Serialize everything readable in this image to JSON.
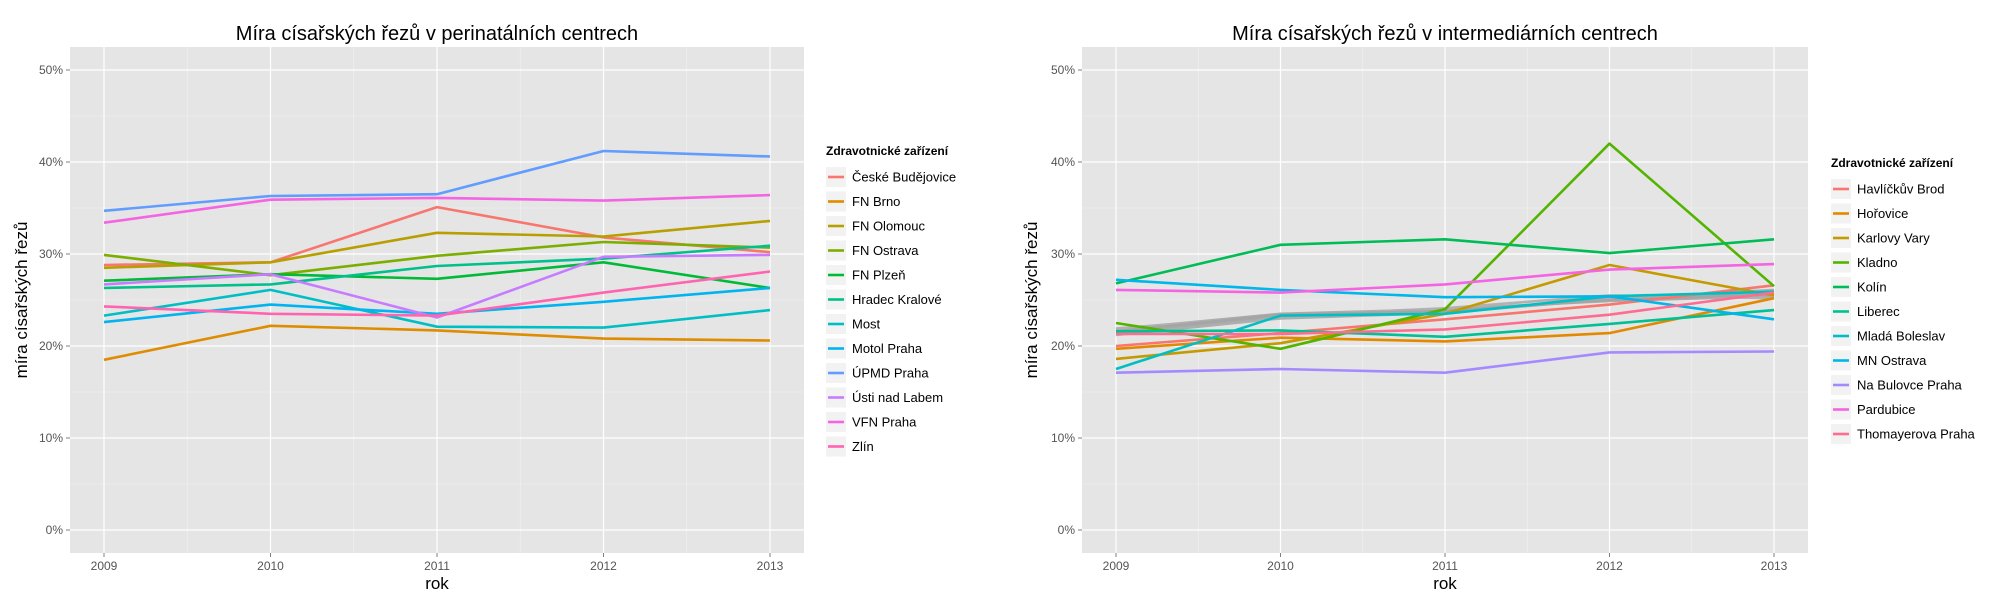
{
  "chart_data": [
    {
      "type": "line",
      "title": "Míra císařských řezů v perinatálních centrech",
      "xlabel": "rok",
      "ylabel": "míra císařských řezů",
      "x": [
        2009,
        2010,
        2011,
        2012,
        2013
      ],
      "x_ticks": [
        "2009",
        "2010",
        "2011",
        "2012",
        "2013"
      ],
      "ylim": [
        -0.025,
        0.525
      ],
      "y_ticks": [
        {
          "value": 0.0,
          "label": "0%"
        },
        {
          "value": 0.1,
          "label": "10%"
        },
        {
          "value": 0.2,
          "label": "20%"
        },
        {
          "value": 0.3,
          "label": "30%"
        },
        {
          "value": 0.4,
          "label": "40%"
        },
        {
          "value": 0.5,
          "label": "50%"
        }
      ],
      "grid": true,
      "legend_title": "Zdravotnické zařízení",
      "legend_position": "right",
      "series": [
        {
          "name": "České Budějovice",
          "color": "#F8766D",
          "values": [
            0.288,
            0.291,
            0.351,
            0.318,
            0.302
          ]
        },
        {
          "name": "FN Brno",
          "color": "#DE8C00",
          "values": [
            0.185,
            0.222,
            0.217,
            0.208,
            0.206
          ]
        },
        {
          "name": "FN Olomouc",
          "color": "#B79F00",
          "values": [
            0.285,
            0.291,
            0.323,
            0.319,
            0.336
          ]
        },
        {
          "name": "FN Ostrava",
          "color": "#7CAE00",
          "values": [
            0.299,
            0.277,
            0.298,
            0.313,
            0.307
          ]
        },
        {
          "name": "FN Plzeň",
          "color": "#00BA38",
          "values": [
            0.271,
            0.278,
            0.273,
            0.291,
            0.263
          ]
        },
        {
          "name": "Hradec Kralové",
          "color": "#00C08B",
          "values": [
            0.263,
            0.267,
            0.287,
            0.295,
            0.309
          ]
        },
        {
          "name": "Most",
          "color": "#00BFC4",
          "values": [
            0.233,
            0.261,
            0.221,
            0.22,
            0.239
          ]
        },
        {
          "name": "Motol Praha",
          "color": "#00B4F0",
          "values": [
            0.226,
            0.245,
            0.235,
            0.248,
            0.263
          ]
        },
        {
          "name": "ÚPMD Praha",
          "color": "#619CFF",
          "values": [
            0.347,
            0.363,
            0.365,
            0.412,
            0.406
          ]
        },
        {
          "name": "Ústi nad Labem",
          "color": "#C77CFF",
          "values": [
            0.267,
            0.278,
            0.231,
            0.297,
            0.299
          ]
        },
        {
          "name": "VFN Praha",
          "color": "#F564E3",
          "values": [
            0.334,
            0.359,
            0.361,
            0.358,
            0.364
          ]
        },
        {
          "name": "Zlín",
          "color": "#FF64B0",
          "values": [
            0.243,
            0.235,
            0.233,
            0.258,
            0.281
          ]
        }
      ]
    },
    {
      "type": "line",
      "title": "Míra císařských řezů v intermediárních centrech",
      "xlabel": "rok",
      "ylabel": "míra císařských řezů",
      "x": [
        2009,
        2010,
        2011,
        2012,
        2013
      ],
      "x_ticks": [
        "2009",
        "2010",
        "2011",
        "2012",
        "2013"
      ],
      "ylim": [
        -0.025,
        0.525
      ],
      "y_ticks": [
        {
          "value": 0.0,
          "label": "0%"
        },
        {
          "value": 0.1,
          "label": "10%"
        },
        {
          "value": 0.2,
          "label": "20%"
        },
        {
          "value": 0.3,
          "label": "30%"
        },
        {
          "value": 0.4,
          "label": "40%"
        },
        {
          "value": 0.5,
          "label": "50%"
        }
      ],
      "grid": true,
      "legend_title": "Zdravotnické zařízení",
      "legend_position": "right",
      "series": [
        {
          "name": "Havlíčkův Brod",
          "color": "#F8766D",
          "values": [
            0.2,
            0.214,
            0.229,
            0.245,
            0.266
          ]
        },
        {
          "name": "Hořovice",
          "color": "#E38900",
          "values": [
            0.197,
            0.209,
            0.205,
            0.214,
            0.252
          ]
        },
        {
          "name": "Karlovy Vary",
          "color": "#C49A00",
          "values": [
            0.186,
            0.203,
            0.235,
            0.288,
            0.255
          ]
        },
        {
          "name": "Kladno",
          "color": "#53B400",
          "values": [
            0.225,
            0.197,
            0.24,
            0.42,
            0.265
          ]
        },
        {
          "name": "Kolín",
          "color": "#00BC56",
          "values": [
            0.268,
            0.31,
            0.316,
            0.301,
            0.316
          ]
        },
        {
          "name": "Liberec",
          "color": "#00C094",
          "values": [
            0.216,
            0.217,
            0.21,
            0.224,
            0.239
          ]
        },
        {
          "name": "Mladá Boleslav",
          "color": "#00BFC4",
          "values": [
            0.175,
            0.233,
            0.235,
            0.254,
            0.259
          ]
        },
        {
          "name": "MN Ostrava",
          "color": "#00B6EB",
          "values": [
            0.272,
            0.261,
            0.253,
            0.254,
            0.229
          ]
        },
        {
          "name": "Na Bulovce Praha",
          "color": "#A58AFF",
          "values": [
            0.171,
            0.175,
            0.171,
            0.193,
            0.194
          ]
        },
        {
          "name": "Pardubice",
          "color": "#F564E3",
          "values": [
            0.261,
            0.258,
            0.267,
            0.283,
            0.289
          ]
        },
        {
          "name": "Thomayerova Praha",
          "color": "#FF6C91",
          "values": [
            0.213,
            0.213,
            0.218,
            0.234,
            0.258
          ]
        }
      ],
      "unlabeled_series": [
        {
          "color": "#A8A8A8",
          "values": [
            0.214,
            0.232,
            0.237,
            0.252,
            0.257
          ]
        },
        {
          "color": "#ABABAB",
          "values": [
            0.218,
            0.235,
            0.24,
            0.249,
            0.254
          ]
        },
        {
          "color": "#AEAEAE",
          "values": [
            0.212,
            0.23,
            0.236,
            0.251,
            0.261
          ]
        },
        {
          "color": "#B1B1B1",
          "values": [
            0.219,
            0.233,
            0.241,
            0.255,
            0.252
          ]
        },
        {
          "color": "#A5A5A5",
          "values": [
            0.216,
            0.234,
            0.238,
            0.25,
            0.256
          ]
        }
      ]
    }
  ]
}
